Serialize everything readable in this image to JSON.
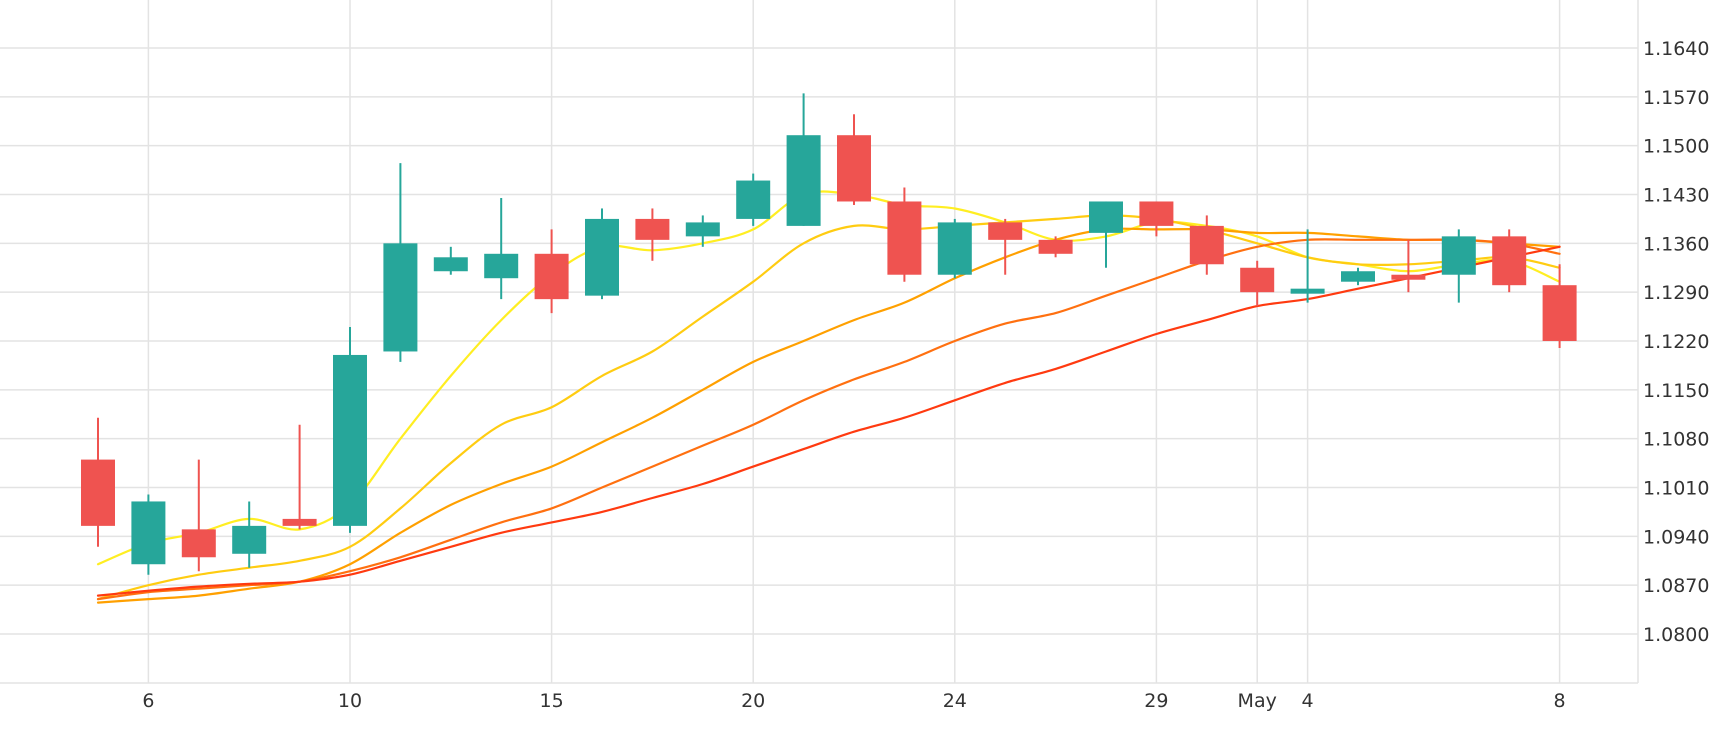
{
  "chart_data": {
    "type": "candlestick",
    "title": "",
    "xlabel": "",
    "ylabel": "",
    "ylim": [
      1.073,
      1.171
    ],
    "grid": true,
    "y_ticks": [
      "1.1640",
      "1.1570",
      "1.1500",
      "1.1430",
      "1.1360",
      "1.1290",
      "1.1220",
      "1.1150",
      "1.1080",
      "1.1010",
      "1.0940",
      "1.0870",
      "1.0800"
    ],
    "x_ticks": [
      {
        "label": "6",
        "index": 1
      },
      {
        "label": "10",
        "index": 5
      },
      {
        "label": "15",
        "index": 9
      },
      {
        "label": "20",
        "index": 13
      },
      {
        "label": "24",
        "index": 17
      },
      {
        "label": "29",
        "index": 21
      },
      {
        "label": "May",
        "index": 23
      },
      {
        "label": "4",
        "index": 24
      },
      {
        "label": "8",
        "index": 29
      }
    ],
    "colors": {
      "up": "#26a69a",
      "down": "#ef5350",
      "grid": "#e3e3e3",
      "text": "#333333"
    },
    "candles": [
      {
        "o": 1.105,
        "h": 1.111,
        "l": 1.0925,
        "c": 1.0955
      },
      {
        "o": 1.09,
        "h": 1.1,
        "l": 1.0885,
        "c": 1.099
      },
      {
        "o": 1.095,
        "h": 1.105,
        "l": 1.089,
        "c": 1.091
      },
      {
        "o": 1.0915,
        "h": 1.099,
        "l": 1.0895,
        "c": 1.0955
      },
      {
        "o": 1.0965,
        "h": 1.11,
        "l": 1.095,
        "c": 1.0955
      },
      {
        "o": 1.0955,
        "h": 1.124,
        "l": 1.0945,
        "c": 1.12
      },
      {
        "o": 1.1205,
        "h": 1.1475,
        "l": 1.119,
        "c": 1.136
      },
      {
        "o": 1.132,
        "h": 1.1355,
        "l": 1.1315,
        "c": 1.134
      },
      {
        "o": 1.131,
        "h": 1.1425,
        "l": 1.128,
        "c": 1.1345
      },
      {
        "o": 1.1345,
        "h": 1.138,
        "l": 1.126,
        "c": 1.128
      },
      {
        "o": 1.1285,
        "h": 1.141,
        "l": 1.128,
        "c": 1.1395
      },
      {
        "o": 1.1395,
        "h": 1.141,
        "l": 1.1335,
        "c": 1.1365
      },
      {
        "o": 1.137,
        "h": 1.14,
        "l": 1.1355,
        "c": 1.139
      },
      {
        "o": 1.1395,
        "h": 1.146,
        "l": 1.1385,
        "c": 1.145
      },
      {
        "o": 1.1385,
        "h": 1.1575,
        "l": 1.1385,
        "c": 1.1515
      },
      {
        "o": 1.1515,
        "h": 1.1545,
        "l": 1.1415,
        "c": 1.142
      },
      {
        "o": 1.142,
        "h": 1.144,
        "l": 1.1305,
        "c": 1.1315
      },
      {
        "o": 1.1315,
        "h": 1.1395,
        "l": 1.131,
        "c": 1.139
      },
      {
        "o": 1.139,
        "h": 1.1395,
        "l": 1.1315,
        "c": 1.1365
      },
      {
        "o": 1.1365,
        "h": 1.137,
        "l": 1.134,
        "c": 1.1345
      },
      {
        "o": 1.1375,
        "h": 1.142,
        "l": 1.1325,
        "c": 1.142
      },
      {
        "o": 1.142,
        "h": 1.142,
        "l": 1.137,
        "c": 1.1385
      },
      {
        "o": 1.1385,
        "h": 1.14,
        "l": 1.1315,
        "c": 1.133
      },
      {
        "o": 1.1325,
        "h": 1.1335,
        "l": 1.127,
        "c": 1.129
      },
      {
        "o": 1.129,
        "h": 1.138,
        "l": 1.1275,
        "c": 1.1295
      },
      {
        "o": 1.1305,
        "h": 1.1325,
        "l": 1.13,
        "c": 1.132
      },
      {
        "o": 1.1315,
        "h": 1.1365,
        "l": 1.129,
        "c": 1.131
      },
      {
        "o": 1.1315,
        "h": 1.138,
        "l": 1.1275,
        "c": 1.137
      },
      {
        "o": 1.137,
        "h": 1.138,
        "l": 1.129,
        "c": 1.13
      },
      {
        "o": 1.13,
        "h": 1.133,
        "l": 1.121,
        "c": 1.122
      }
    ],
    "series": [
      {
        "color": "#ffee22",
        "values": [
          1.09,
          1.093,
          1.0945,
          1.0965,
          1.095,
          1.0985,
          1.108,
          1.117,
          1.125,
          1.1315,
          1.1355,
          1.135,
          1.136,
          1.138,
          1.143,
          1.143,
          1.1415,
          1.141,
          1.139,
          1.1365,
          1.137,
          1.139,
          1.1385,
          1.137,
          1.134,
          1.133,
          1.132,
          1.133,
          1.1335,
          1.1305
        ]
      },
      {
        "color": "#ffcc11",
        "values": [
          1.085,
          1.087,
          1.0885,
          1.0895,
          1.0905,
          1.0925,
          1.098,
          1.1045,
          1.11,
          1.1125,
          1.117,
          1.1205,
          1.1255,
          1.1305,
          1.136,
          1.1385,
          1.138,
          1.1385,
          1.139,
          1.1395,
          1.14,
          1.1395,
          1.138,
          1.136,
          1.134,
          1.133,
          1.133,
          1.1335,
          1.134,
          1.1325
        ]
      },
      {
        "color": "#ffa000",
        "values": [
          1.0845,
          1.085,
          1.0855,
          1.0865,
          1.0875,
          1.09,
          1.0945,
          1.0985,
          1.1015,
          1.104,
          1.1075,
          1.111,
          1.115,
          1.119,
          1.122,
          1.125,
          1.1275,
          1.131,
          1.134,
          1.1365,
          1.138,
          1.138,
          1.138,
          1.1375,
          1.1375,
          1.137,
          1.1365,
          1.1365,
          1.136,
          1.1355
        ]
      },
      {
        "color": "#ff7010",
        "values": [
          1.085,
          1.086,
          1.0865,
          1.087,
          1.0875,
          1.089,
          1.091,
          1.0935,
          1.096,
          1.098,
          1.101,
          1.104,
          1.107,
          1.11,
          1.1135,
          1.1165,
          1.119,
          1.122,
          1.1245,
          1.126,
          1.1285,
          1.131,
          1.1335,
          1.1355,
          1.1365,
          1.1365,
          1.1365,
          1.1365,
          1.136,
          1.1345
        ]
      },
      {
        "color": "#ff3a10",
        "values": [
          1.0855,
          1.0862,
          1.0868,
          1.0872,
          1.0875,
          1.0885,
          1.0905,
          1.0925,
          1.0945,
          1.096,
          1.0975,
          1.0995,
          1.1015,
          1.104,
          1.1065,
          1.109,
          1.111,
          1.1135,
          1.116,
          1.118,
          1.1205,
          1.123,
          1.125,
          1.127,
          1.128,
          1.1295,
          1.131,
          1.1325,
          1.134,
          1.1355
        ]
      }
    ]
  }
}
